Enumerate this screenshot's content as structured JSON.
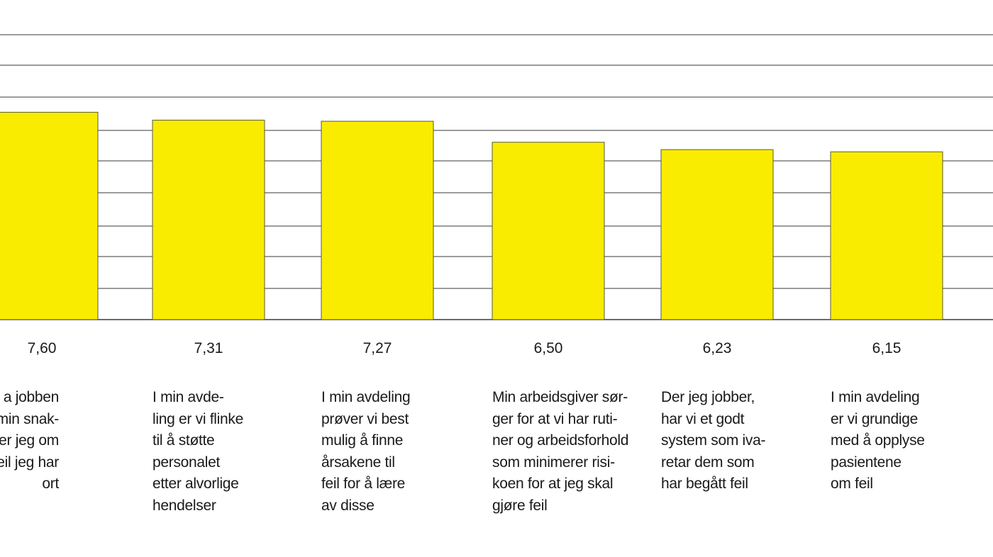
{
  "chart_data": {
    "type": "bar",
    "categories": [
      "a jobben\nmin snak-\ner jeg om\nfeil jeg har\nort",
      "I min avde-\nling er vi flinke\ntil å støtte\npersonalet\netter alvorlige\nhendelser",
      "I min avdeling\nprøver vi best\nmulig å finne\nårsakene til\nfeil for å lære\nav disse",
      "Min arbeidsgiver sør-\nger for at vi har ruti-\nner og arbeidsforhold\nsom minimerer risi-\nkoen for at jeg skal\ngjøre feil",
      "Der jeg jobber,\nhar vi et godt\nsystem som iva-\nretar dem som\nhar begått feil",
      "I min avdeling\ner vi grundige\nmed å opplyse\npasientene\nom feil"
    ],
    "values": [
      7.6,
      7.31,
      7.27,
      6.5,
      6.23,
      6.15
    ],
    "value_labels": [
      "7,60",
      "7,31",
      "7,27",
      "6,50",
      "6,23",
      "6,15"
    ],
    "title": "",
    "xlabel": "",
    "ylabel": "",
    "grid": true,
    "colors": {
      "bar_fill": "#FAEC00",
      "bar_stroke": "#5a5a3a",
      "grid": "#3a3a3a",
      "text": "#1a1a1a"
    }
  }
}
